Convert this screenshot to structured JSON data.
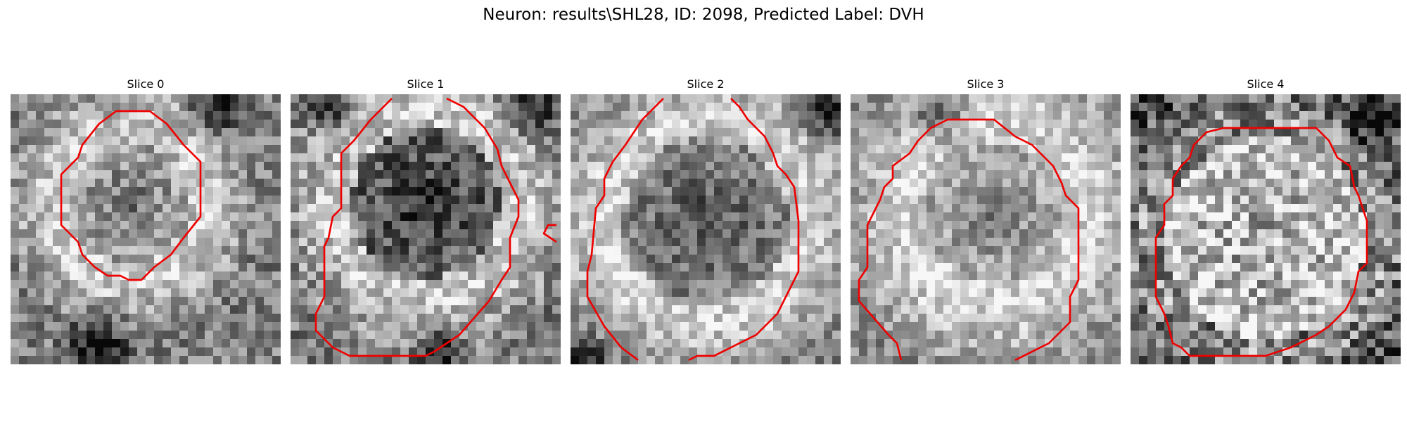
{
  "figure": {
    "title": "Neuron: results\\SHL28, ID: 2098, Predicted Label: DVH"
  },
  "slices": [
    {
      "title": "Slice 0"
    },
    {
      "title": "Slice 1"
    },
    {
      "title": "Slice 2"
    },
    {
      "title": "Slice 3"
    },
    {
      "title": "Slice 4"
    }
  ],
  "colors": {
    "contour": "#ee0000",
    "background": "#ffffff"
  },
  "colormap": "gray",
  "grid_size": 32
}
